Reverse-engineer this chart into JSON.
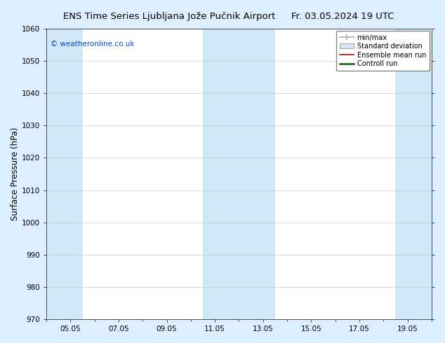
{
  "title_left": "ENS Time Series Ljubljana Jože Pučnik Airport",
  "title_right": "Fr. 03.05.2024 19 UTC",
  "ylabel": "Surface Pressure (hPa)",
  "ylim": [
    970,
    1060
  ],
  "yticks": [
    970,
    980,
    990,
    1000,
    1010,
    1020,
    1030,
    1040,
    1050,
    1060
  ],
  "xtick_labels": [
    "05.05",
    "07.05",
    "09.05",
    "11.05",
    "13.05",
    "15.05",
    "17.05",
    "19.05"
  ],
  "xtick_positions": [
    1,
    3,
    5,
    7,
    9,
    11,
    13,
    15
  ],
  "xlim": [
    0,
    16
  ],
  "shaded_bands": [
    {
      "xmin": 0.0,
      "xmax": 1.5
    },
    {
      "xmin": 6.5,
      "xmax": 9.5
    },
    {
      "xmin": 14.5,
      "xmax": 16.0
    }
  ],
  "fig_bg_color": "#ddeeff",
  "plot_bg_color": "#ffffff",
  "band_color": "#d0e8f8",
  "grid_color": "#cccccc",
  "watermark": "© weatheronline.co.uk",
  "watermark_color": "#1144cc",
  "title_fontsize": 9.5,
  "tick_fontsize": 7.5,
  "ylabel_fontsize": 8.5
}
